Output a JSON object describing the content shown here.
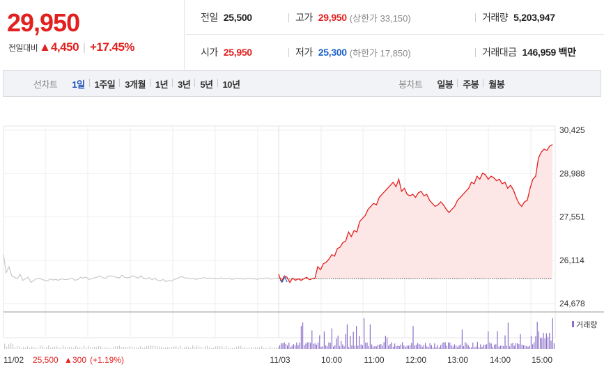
{
  "header": {
    "price": "29,950",
    "change_label": "전일대비",
    "change_arrow": "▲",
    "change_amount": "4,450",
    "change_rate": "+17.45%",
    "quotes": {
      "prev_label": "전일",
      "prev_value": "25,500",
      "high_label": "고가",
      "high_value": "29,950",
      "high_note": "(상한가 33,150)",
      "volume_label": "거래량",
      "volume_value": "5,203,947",
      "open_label": "시가",
      "open_value": "25,950",
      "low_label": "저가",
      "low_value": "25,300",
      "low_note": "(하한가 17,850)",
      "amount_label": "거래대금",
      "amount_value": "146,959 백만"
    }
  },
  "toolbar": {
    "line_title": "선차트",
    "line_items": [
      "1일",
      "1주일",
      "3개월",
      "1년",
      "3년",
      "5년",
      "10년"
    ],
    "active_index": 0,
    "candle_title": "봉차트",
    "candle_items": [
      "일봉",
      "주봉",
      "월봉"
    ]
  },
  "chart": {
    "legend_volume": "거래량",
    "prev_day_summary": {
      "date": "11/02",
      "price": "25,500",
      "arrow": "▲",
      "change": "300",
      "rate": "(+1.19%)"
    },
    "colors": {
      "up": "#e1201f",
      "down": "#1e62c9",
      "prev_line": "#c8c8c8",
      "volume": "#8b6fc9",
      "fill": "#fde3e3"
    }
  },
  "chart_data": {
    "type": "line",
    "y_ticks": [
      "30,425",
      "28,988",
      "27,551",
      "26,114",
      "24,678"
    ],
    "ylim": [
      24678,
      30425
    ],
    "x_ticks": [
      "11/02",
      "11/03",
      "10:00",
      "11:00",
      "12:00",
      "13:00",
      "14:00",
      "15:00"
    ],
    "baseline": 25500,
    "series": [
      {
        "x": [
          0,
          1,
          2,
          3,
          4,
          5,
          6,
          7,
          8,
          9,
          10,
          11,
          12,
          13,
          14,
          15,
          16,
          17,
          18,
          19,
          20,
          21,
          22,
          23,
          24,
          25,
          26,
          27,
          28,
          29,
          30,
          31,
          32,
          33,
          34,
          35,
          36,
          37,
          38,
          39,
          40,
          41,
          42,
          43,
          44,
          45,
          46,
          47,
          48,
          49,
          50,
          51,
          52,
          53,
          54,
          55,
          56,
          57,
          58,
          59,
          60,
          61,
          62,
          63,
          64,
          65,
          66,
          67,
          68,
          69,
          70,
          71,
          72,
          73,
          74,
          75,
          76,
          77,
          78,
          79,
          80,
          81,
          82,
          83,
          84,
          85,
          86,
          87,
          88,
          89,
          90,
          91,
          92,
          93,
          94,
          95,
          96,
          97,
          98,
          99,
          100
        ],
        "y": [
          26300,
          25700,
          25900,
          25600,
          25550,
          25500,
          25650,
          25450,
          25500,
          25550,
          25380,
          25450,
          25500,
          25520,
          25480,
          25450,
          25430,
          25500,
          25460,
          25480,
          25450,
          25500,
          25480,
          25470,
          25500,
          25520,
          25450,
          25480,
          25550,
          25520,
          25560,
          25480,
          25500,
          25530,
          25550,
          25600,
          25540,
          25510,
          25580,
          25600,
          25580,
          25550,
          25520,
          25620,
          25550,
          25530,
          25550,
          25600,
          25560,
          25520,
          25600,
          25500,
          25500,
          25540,
          25470,
          25520,
          25450,
          25430,
          25480,
          25400,
          25450,
          25420,
          25480,
          25500,
          25550,
          25570,
          25520,
          25530,
          25500,
          25520,
          25480,
          25510,
          25520,
          25540,
          25500,
          25530,
          25510,
          25520,
          25500,
          25530,
          25510,
          25500,
          25520,
          25480,
          25500,
          25520,
          25510,
          25490,
          25500,
          25520,
          25500,
          25510,
          25480,
          25500,
          25510,
          25520,
          25530,
          25490,
          25500,
          25520,
          25530
        ]
      },
      {
        "x": [
          0,
          4,
          8,
          12,
          16,
          20,
          24,
          28,
          32,
          36,
          40,
          44,
          48,
          52,
          56,
          60,
          64,
          68,
          72,
          76,
          80,
          84,
          88,
          92,
          96,
          100,
          104,
          108,
          112,
          116,
          120,
          124,
          128,
          132,
          136,
          140,
          144,
          148,
          152,
          156,
          160,
          164,
          168,
          172,
          176,
          180,
          184,
          188,
          192,
          196,
          200,
          204,
          208,
          212,
          216,
          220,
          224,
          228,
          232,
          236,
          240,
          244,
          248,
          252,
          256,
          260,
          264,
          268,
          272,
          276,
          280,
          284,
          288,
          292,
          296,
          300,
          304,
          308,
          312,
          316,
          320,
          324,
          328,
          332,
          336,
          340,
          344,
          348,
          352,
          356,
          360,
          364,
          368,
          372,
          376,
          380,
          384,
          388,
          392
        ],
        "y": [
          25650,
          25400,
          25600,
          25550,
          25380,
          25520,
          25450,
          25500,
          25450,
          25500,
          25550,
          25470,
          25500,
          25520,
          25900,
          25800,
          26000,
          26050,
          26150,
          26300,
          26250,
          26500,
          26550,
          26700,
          26750,
          27050,
          26900,
          27100,
          27050,
          27400,
          27500,
          27600,
          27800,
          27900,
          28000,
          27950,
          28200,
          28300,
          28400,
          28500,
          28600,
          28700,
          28550,
          28800,
          28400,
          28500,
          28300,
          28250,
          28300,
          28200,
          28350,
          28400,
          28250,
          28300,
          28100,
          28000,
          27900,
          27950,
          28050,
          27950,
          27800,
          27700,
          27800,
          27900,
          28100,
          28200,
          28300,
          28400,
          28500,
          28700,
          28650,
          28900,
          28800,
          29000,
          28950,
          28800,
          28900,
          28850,
          28750,
          28800,
          28650,
          28700,
          28500,
          28600,
          28450,
          28200,
          28000,
          27900,
          28050,
          28100,
          28500,
          28800,
          28900,
          29500,
          29700,
          29800,
          29750,
          29900,
          29950
        ]
      }
    ]
  }
}
